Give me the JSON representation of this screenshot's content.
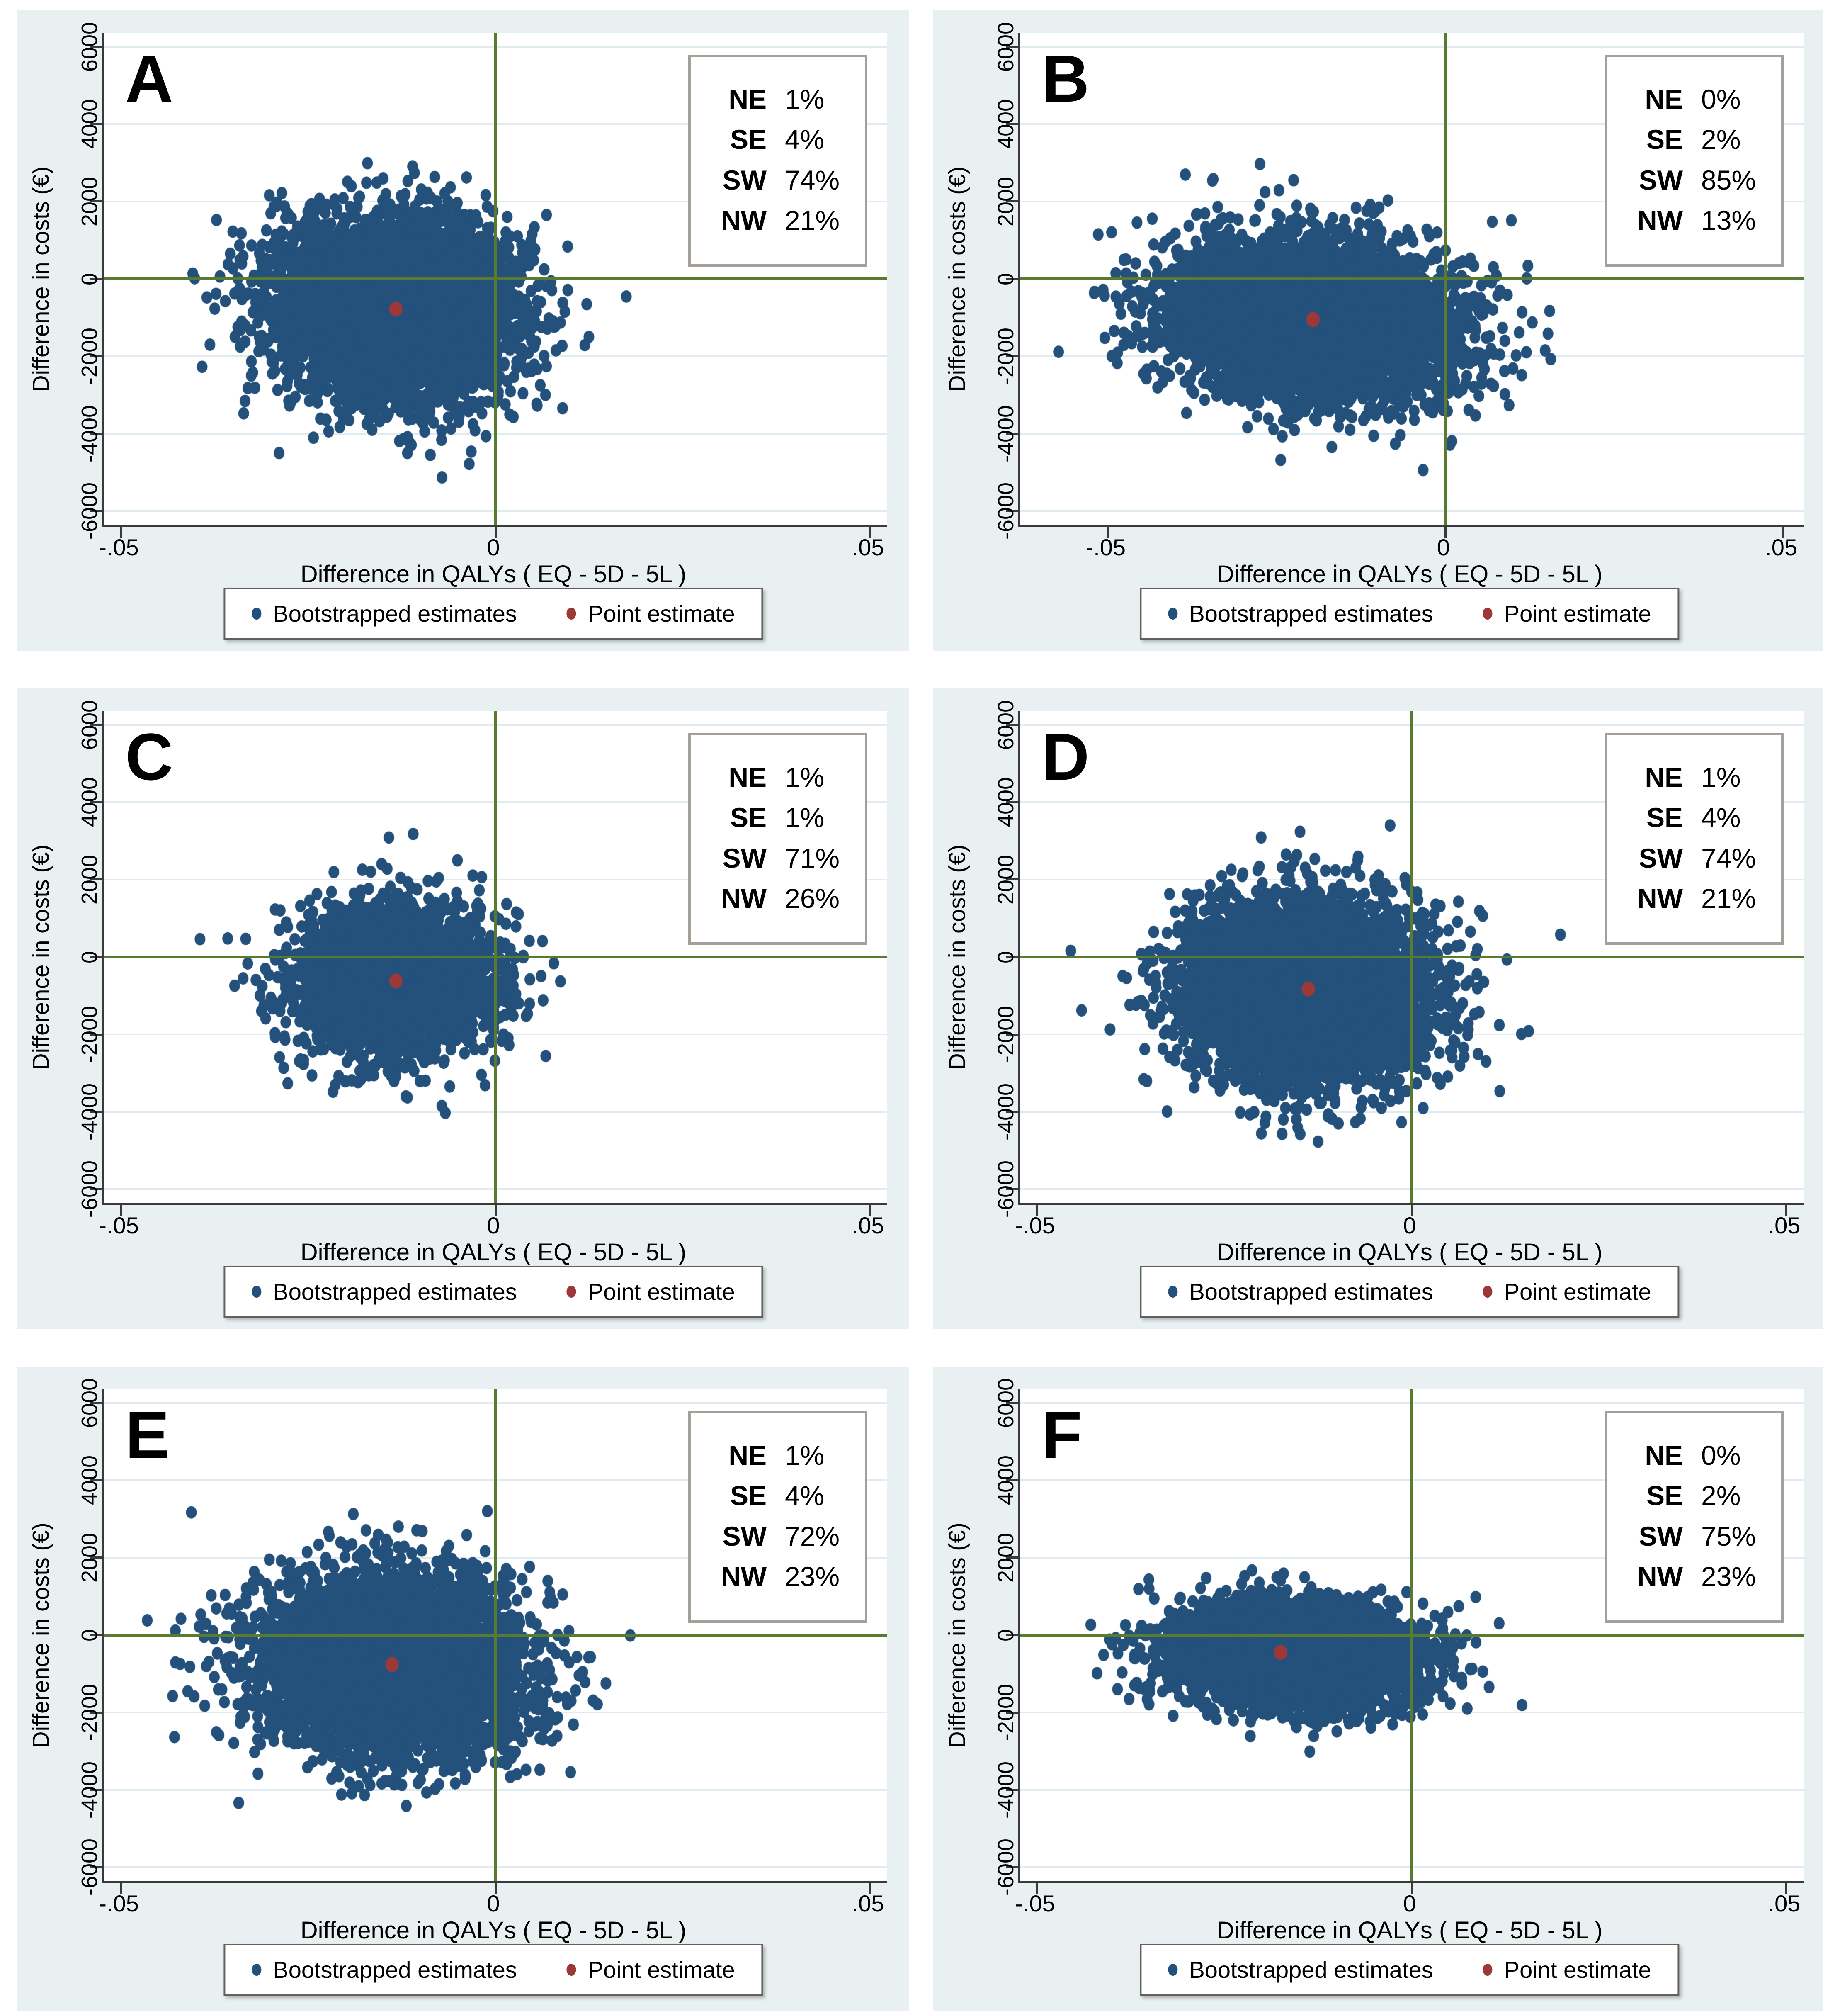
{
  "figure": {
    "title": "Cost-effectiveness planes of bootstrapped estimates, panels A to F",
    "colors": {
      "page_bg": "#ffffff",
      "panel_bg": "#e9f0f2",
      "plot_bg": "#ffffff",
      "grid_color": "#dfebee",
      "axis_color": "#3a3a3a",
      "refline_color": "#597b2f",
      "dot_color": "#24517b",
      "point_color": "#9c3938",
      "quadbox_border": "#a49f99"
    }
  },
  "chart_data": {
    "type": "scatter",
    "layout": "2 columns x 3 rows of cost-effectiveness planes",
    "x_axis": {
      "label": "Difference in QALYs ( EQ - 5D - 5L )",
      "tick_labels": [
        "-.05",
        "0",
        ".05"
      ],
      "tick_values": [
        -0.05,
        0,
        0.05
      ]
    },
    "y_axis": {
      "label": "Difference in costs (€)",
      "tick_labels": [
        "6000",
        "4000",
        "2000",
        "0",
        "-2000",
        "-4000",
        "-6000"
      ],
      "tick_values": [
        6000,
        4000,
        2000,
        0,
        -2000,
        -4000,
        -6000
      ],
      "range": [
        -6350,
        6350
      ],
      "gridline_values": [
        6000,
        4000,
        2000,
        -2000,
        -4000,
        -6000
      ]
    },
    "reference_lines": {
      "vertical_at_x": 0,
      "horizontal_at_y": 0
    },
    "legend": [
      {
        "label": "Bootstrapped estimates",
        "color": "#24517b"
      },
      {
        "label": "Point estimate",
        "color": "#9c3938"
      }
    ],
    "panels": [
      {
        "letter": "A",
        "quadrants": [
          {
            "label": "NE",
            "value": "1%"
          },
          {
            "label": "SE",
            "value": "4%"
          },
          {
            "label": "SW",
            "value": "74%"
          },
          {
            "label": "NW",
            "value": "21%"
          }
        ],
        "x_range": [
          -0.0523,
          0.0523
        ],
        "point_estimate": {
          "x": -0.0133,
          "y": -780
        },
        "cloud_model": {
          "n": 5200,
          "center_x": -0.0133,
          "center_y": -780,
          "sd_x": 0.0078,
          "sd_y": 1150,
          "corr": -0.08,
          "seed": 101
        }
      },
      {
        "letter": "B",
        "quadrants": [
          {
            "label": "NE",
            "value": "0%"
          },
          {
            "label": "SE",
            "value": "2%"
          },
          {
            "label": "SW",
            "value": "85%"
          },
          {
            "label": "NW",
            "value": "13%"
          }
        ],
        "x_range": [
          -0.063,
          0.053
        ],
        "point_estimate": {
          "x": -0.0196,
          "y": -1050
        },
        "cloud_model": {
          "n": 5200,
          "center_x": -0.0196,
          "center_y": -1050,
          "sd_x": 0.0105,
          "sd_y": 1020,
          "corr": -0.15,
          "seed": 202
        }
      },
      {
        "letter": "C",
        "quadrants": [
          {
            "label": "NE",
            "value": "1%"
          },
          {
            "label": "SE",
            "value": "1%"
          },
          {
            "label": "SW",
            "value": "71%"
          },
          {
            "label": "NW",
            "value": "26%"
          }
        ],
        "x_range": [
          -0.0523,
          0.0523
        ],
        "point_estimate": {
          "x": -0.0133,
          "y": -620
        },
        "cloud_model": {
          "n": 2800,
          "center_x": -0.0133,
          "center_y": -620,
          "sd_x": 0.0065,
          "sd_y": 960,
          "corr": 0.0,
          "seed": 303
        }
      },
      {
        "letter": "D",
        "quadrants": [
          {
            "label": "NE",
            "value": "1%"
          },
          {
            "label": "SE",
            "value": "4%"
          },
          {
            "label": "SW",
            "value": "74%"
          },
          {
            "label": "NW",
            "value": "21%"
          }
        ],
        "x_range": [
          -0.0523,
          0.0523
        ],
        "point_estimate": {
          "x": -0.0138,
          "y": -830
        },
        "cloud_model": {
          "n": 5200,
          "center_x": -0.0138,
          "center_y": -830,
          "sd_x": 0.008,
          "sd_y": 1150,
          "corr": -0.05,
          "seed": 404
        }
      },
      {
        "letter": "E",
        "quadrants": [
          {
            "label": "NE",
            "value": "1%"
          },
          {
            "label": "SE",
            "value": "4%"
          },
          {
            "label": "SW",
            "value": "72%"
          },
          {
            "label": "NW",
            "value": "23%"
          }
        ],
        "x_range": [
          -0.0523,
          0.0523
        ],
        "point_estimate": {
          "x": -0.0138,
          "y": -760
        },
        "cloud_model": {
          "n": 5200,
          "center_x": -0.0138,
          "center_y": -760,
          "sd_x": 0.0085,
          "sd_y": 1120,
          "corr": -0.08,
          "seed": 505
        }
      },
      {
        "letter": "F",
        "quadrants": [
          {
            "label": "NE",
            "value": "0%"
          },
          {
            "label": "SE",
            "value": "2%"
          },
          {
            "label": "SW",
            "value": "75%"
          },
          {
            "label": "NW",
            "value": "23%"
          }
        ],
        "x_range": [
          -0.0523,
          0.0523
        ],
        "point_estimate": {
          "x": -0.0175,
          "y": -450
        },
        "cloud_model": {
          "n": 5200,
          "center_x": -0.0155,
          "center_y": -500,
          "sd_x": 0.0078,
          "sd_y": 620,
          "corr": -0.05,
          "seed": 606
        }
      }
    ]
  }
}
